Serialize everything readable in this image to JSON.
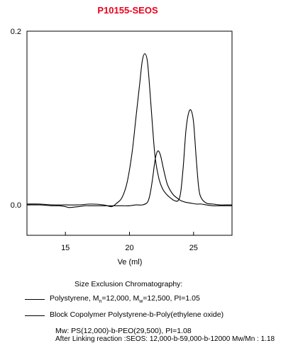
{
  "header": {
    "title": "P10155-SEOS"
  },
  "chart_data": {
    "type": "line",
    "title": "P10155-SEOS",
    "xlabel": "Ve (ml)",
    "ylabel": "",
    "xlim": [
      12,
      28
    ],
    "ylim": [
      -0.035,
      0.2
    ],
    "xticks": [
      15,
      20,
      25
    ],
    "yticks": [
      0.0,
      0.2
    ],
    "ytick_labels": [
      "0.0",
      "0.2"
    ],
    "xtick_labels": [
      "15",
      "20",
      "25"
    ],
    "grid": false,
    "series": [
      {
        "name": "Polystyrene, Mn=12,000, Mw=12,500, PI=1.05",
        "x": [
          12.0,
          13.0,
          14.0,
          14.5,
          15.0,
          15.3,
          16.0,
          16.5,
          17.0,
          17.5,
          18.0,
          18.5,
          19.0,
          19.5,
          20.0,
          20.5,
          21.0,
          21.4,
          21.6,
          21.8,
          22.0,
          22.2,
          22.4,
          22.6,
          22.8,
          23.0,
          23.4,
          23.8,
          24.0,
          24.4,
          24.8,
          25.2,
          25.6,
          26.0,
          26.5,
          27.0,
          27.5,
          28.0
        ],
        "y": [
          0.0,
          0.0,
          -0.001,
          -0.001,
          -0.002,
          -0.003,
          -0.002,
          -0.001,
          -0.001,
          -0.001,
          -0.001,
          -0.001,
          -0.001,
          -0.001,
          -0.001,
          0.0,
          0.0,
          0.003,
          0.012,
          0.03,
          0.052,
          0.062,
          0.058,
          0.045,
          0.032,
          0.022,
          0.012,
          0.007,
          0.005,
          0.003,
          0.002,
          0.001,
          0.001,
          0.0,
          -0.001,
          -0.001,
          -0.001,
          -0.001
        ]
      },
      {
        "name": "Block Copolymer Polystyrene-b-Poly(ethylene oxide)",
        "x": [
          12.0,
          13.0,
          14.0,
          15.0,
          16.0,
          17.0,
          18.0,
          18.6,
          19.0,
          19.4,
          19.8,
          20.2,
          20.5,
          20.8,
          21.0,
          21.2,
          21.4,
          21.6,
          21.8,
          22.0,
          22.3,
          22.6,
          22.9,
          23.2,
          23.5,
          23.8,
          24.0,
          24.2,
          24.4,
          24.6,
          24.8,
          25.0,
          25.2,
          25.4,
          25.6,
          26.0,
          26.5,
          27.0,
          27.5,
          28.0
        ],
        "y": [
          0.001,
          0.001,
          0.0,
          0.0,
          0.0,
          0.001,
          0.0,
          -0.002,
          0.002,
          0.008,
          0.025,
          0.06,
          0.1,
          0.14,
          0.166,
          0.174,
          0.165,
          0.13,
          0.09,
          0.055,
          0.03,
          0.018,
          0.012,
          0.008,
          0.005,
          0.005,
          0.015,
          0.045,
          0.085,
          0.105,
          0.109,
          0.095,
          0.055,
          0.02,
          0.008,
          0.002,
          0.001,
          0.0,
          0.0,
          0.0
        ]
      }
    ]
  },
  "captions": {
    "heading": "Size Exclusion Chromatography:",
    "legend1_pre": "Polystyrene, M",
    "legend1_sub1": "n",
    "legend1_mid": "=12,000, M",
    "legend1_sub2": "w",
    "legend1_post": "=12,500, PI=1.05",
    "legend2": "Block Copolymer Polystyrene-b-Poly(ethylene oxide)",
    "mw_line": "Mw: PS(12,000)-b-PEO(29,500), PI=1.08",
    "linking_line": "After Linking reaction :SEOS: 12,000-b-59,000-b-12000 Mw/Mn : 1.18"
  },
  "colors": {
    "title": "#e8001c",
    "lines": "#000000"
  }
}
